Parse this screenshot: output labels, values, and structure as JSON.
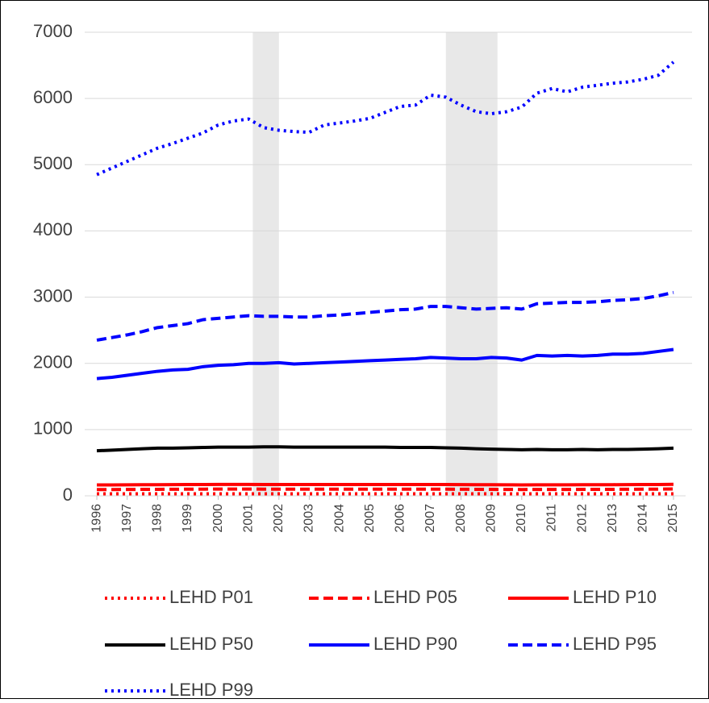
{
  "chart_data": {
    "type": "line",
    "x": [
      1996,
      1996.5,
      1997,
      1997.5,
      1998,
      1998.5,
      1999,
      1999.5,
      2000,
      2000.5,
      2001,
      2001.5,
      2002,
      2002.5,
      2003,
      2003.5,
      2004,
      2004.5,
      2005,
      2005.5,
      2006,
      2006.5,
      2007,
      2007.5,
      2008,
      2008.5,
      2009,
      2009.5,
      2010,
      2010.5,
      2011,
      2011.5,
      2012,
      2012.5,
      2013,
      2013.5,
      2014,
      2014.5,
      2015
    ],
    "series": [
      {
        "name": "LEHD P01",
        "color": "#ff0000",
        "style": "dotted",
        "values": [
          30,
          30,
          30,
          30,
          30,
          30,
          30,
          30,
          30,
          30,
          30,
          30,
          30,
          30,
          30,
          30,
          30,
          30,
          30,
          30,
          30,
          30,
          30,
          30,
          30,
          30,
          30,
          30,
          30,
          30,
          30,
          30,
          30,
          30,
          30,
          30,
          30,
          30,
          30
        ]
      },
      {
        "name": "LEHD P05",
        "color": "#ff0000",
        "style": "dashed",
        "values": [
          95,
          95,
          96,
          97,
          98,
          99,
          100,
          101,
          102,
          102,
          102,
          101,
          101,
          100,
          100,
          100,
          100,
          100,
          100,
          100,
          100,
          100,
          100,
          100,
          99,
          98,
          97,
          96,
          95,
          96,
          96,
          96,
          97,
          97,
          98,
          99,
          100,
          101,
          103
        ]
      },
      {
        "name": "LEHD P10",
        "color": "#ff0000",
        "style": "solid",
        "values": [
          165,
          165,
          166,
          167,
          168,
          169,
          170,
          171,
          172,
          172,
          172,
          171,
          171,
          170,
          170,
          170,
          170,
          170,
          170,
          170,
          170,
          170,
          170,
          170,
          169,
          168,
          167,
          166,
          165,
          166,
          166,
          166,
          167,
          167,
          168,
          169,
          170,
          171,
          173
        ]
      },
      {
        "name": "LEHD P50",
        "color": "#000000",
        "style": "solid",
        "values": [
          680,
          690,
          700,
          710,
          720,
          720,
          725,
          730,
          735,
          735,
          735,
          740,
          740,
          735,
          735,
          735,
          735,
          735,
          735,
          735,
          730,
          730,
          730,
          725,
          720,
          710,
          705,
          700,
          695,
          700,
          695,
          695,
          700,
          695,
          700,
          700,
          705,
          710,
          720
        ]
      },
      {
        "name": "LEHD P90",
        "color": "#0000ff",
        "style": "solid",
        "values": [
          1770,
          1790,
          1820,
          1850,
          1880,
          1900,
          1910,
          1950,
          1970,
          1980,
          2000,
          2000,
          2010,
          1990,
          2000,
          2010,
          2020,
          2030,
          2040,
          2050,
          2060,
          2070,
          2090,
          2080,
          2070,
          2070,
          2090,
          2080,
          2050,
          2120,
          2110,
          2120,
          2110,
          2120,
          2140,
          2140,
          2150,
          2180,
          2210
        ]
      },
      {
        "name": "LEHD P95",
        "color": "#0000ff",
        "style": "dashed",
        "values": [
          2350,
          2390,
          2430,
          2480,
          2540,
          2570,
          2600,
          2660,
          2680,
          2700,
          2720,
          2710,
          2710,
          2700,
          2700,
          2720,
          2730,
          2750,
          2770,
          2790,
          2810,
          2820,
          2860,
          2860,
          2840,
          2820,
          2830,
          2840,
          2820,
          2900,
          2910,
          2920,
          2920,
          2930,
          2950,
          2960,
          2980,
          3020,
          3070
        ]
      },
      {
        "name": "LEHD P99",
        "color": "#0000ff",
        "style": "dotted",
        "values": [
          4850,
          4950,
          5050,
          5150,
          5250,
          5320,
          5400,
          5480,
          5600,
          5660,
          5690,
          5560,
          5520,
          5500,
          5490,
          5600,
          5630,
          5660,
          5700,
          5790,
          5880,
          5900,
          6050,
          6020,
          5900,
          5800,
          5770,
          5800,
          5870,
          6080,
          6150,
          6100,
          6170,
          6200,
          6230,
          6250,
          6290,
          6350,
          6550
        ]
      }
    ],
    "shaded_regions": [
      [
        2001.14,
        2002.0
      ],
      [
        2007.5,
        2009.2
      ]
    ],
    "xlim": [
      1995.6,
      2015.4
    ],
    "xticks": [
      1996,
      1997,
      1998,
      1999,
      2000,
      2001,
      2002,
      2003,
      2004,
      2005,
      2006,
      2007,
      2008,
      2009,
      2010,
      2011,
      2012,
      2013,
      2014,
      2015
    ],
    "ylim": [
      0,
      7000
    ],
    "yticks": [
      0,
      1000,
      2000,
      3000,
      4000,
      5000,
      6000,
      7000
    ],
    "grid": true,
    "legend": "bottom"
  }
}
